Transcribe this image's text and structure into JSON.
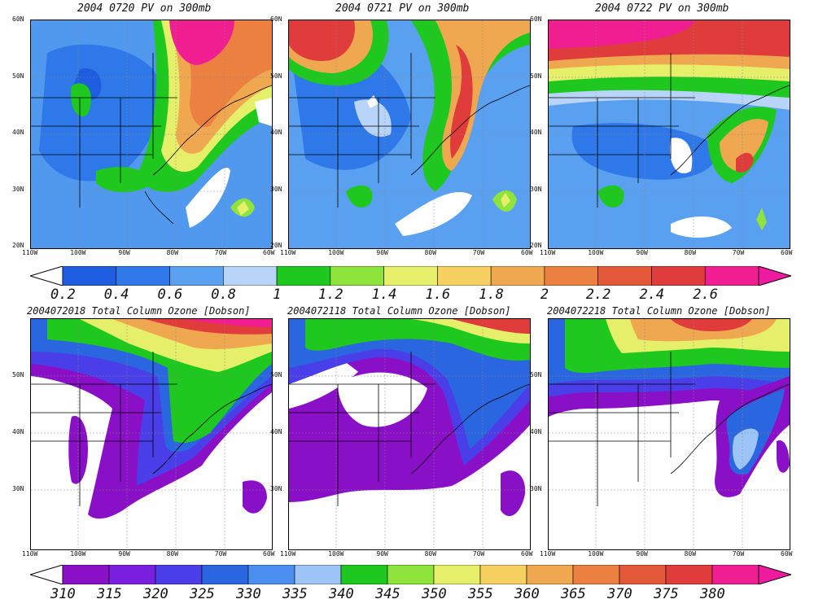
{
  "pv_maps": {
    "panels": [
      {
        "title": "2004 0720 PV on 300mb"
      },
      {
        "title": "2004 0721 PV on 300mb"
      },
      {
        "title": "2004 0722 PV on 300mb"
      }
    ],
    "lat_labels": [
      "60N",
      "50N",
      "40N",
      "30N",
      "20N"
    ],
    "lon_labels": [
      "110W",
      "100W",
      "90W",
      "80W",
      "70W",
      "60W"
    ],
    "colorbar": {
      "labels": [
        "0.2",
        "0.4",
        "0.6",
        "0.8",
        "1",
        "1.2",
        "1.4",
        "1.6",
        "1.8",
        "2",
        "2.2",
        "2.4",
        "2.6"
      ],
      "colors": [
        "#1e5de0",
        "#2f78ea",
        "#5aa0f0",
        "#b8d4f8",
        "#1ec81e",
        "#8ee33c",
        "#e6ef6a",
        "#f6d060",
        "#f0a850",
        "#ec8040",
        "#e4583a",
        "#e03c3c",
        "#f01e90"
      ],
      "under_color": "#ffffff",
      "over_color": "#ee1aa0"
    }
  },
  "ozone_maps": {
    "panels": [
      {
        "title": "2004072018 Total Column Ozone [Dobson]"
      },
      {
        "title": "2004072118 Total Column Ozone [Dobson]"
      },
      {
        "title": "2004072218 Total Column Ozone [Dobson]"
      }
    ],
    "lat_labels": [
      "50N",
      "40N",
      "30N"
    ],
    "lon_labels": [
      "110W",
      "100W",
      "90W",
      "80W",
      "70W",
      "60W"
    ],
    "colorbar": {
      "labels": [
        "310",
        "315",
        "320",
        "325",
        "330",
        "335",
        "340",
        "345",
        "350",
        "355",
        "360",
        "365",
        "370",
        "375",
        "380"
      ],
      "colors": [
        "#8a10c8",
        "#7a1ee0",
        "#4a3ee8",
        "#2a66e0",
        "#4a8eef",
        "#9cc4f6",
        "#1ec81e",
        "#8ee33c",
        "#e6ef6a",
        "#f6d060",
        "#f0a850",
        "#ec8040",
        "#e4583a",
        "#e03c3c",
        "#f01e90"
      ],
      "under_color": "#ffffff",
      "over_color": "#ee1aa0"
    }
  }
}
